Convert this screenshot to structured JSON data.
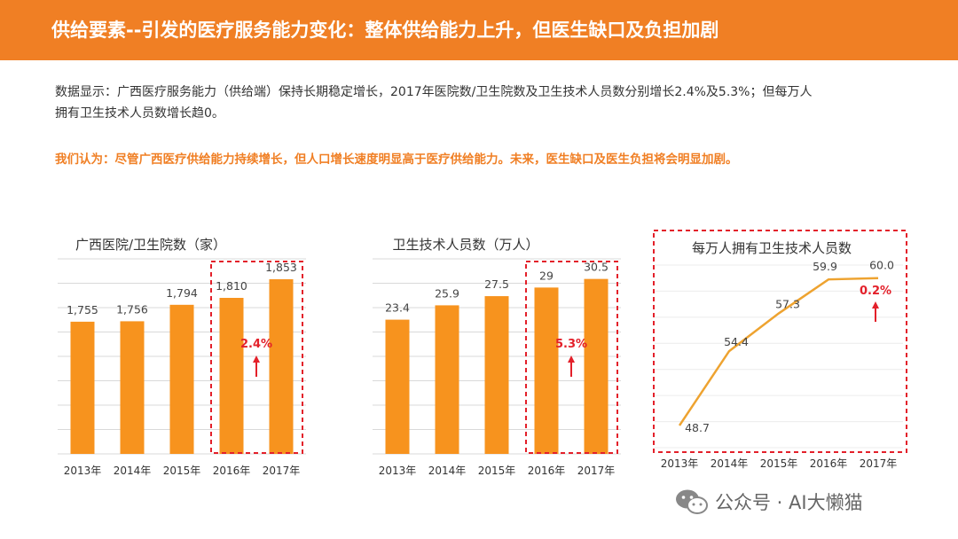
{
  "header": {
    "title": "供给要素--引发的医疗服务能力变化：整体供给能力上升，但医生缺口及负担加剧"
  },
  "description": {
    "line1": "数据显示：广西医疗服务能力（供给端）保持长期稳定增长，2017年医院数/卫生院数及卫生技术人员数分别增长2.4%及5.3%；但每万人",
    "line2": "拥有卫生技术人员数增长趋0。"
  },
  "conclusion": "我们认为：尽管广西医疗供给能力持续增长，但人口增长速度明显高于医疗供给能力。未来，医生缺口及医生负担将会明显加剧。",
  "watermark": {
    "text": "公众号 · AI大懒猫",
    "icon": "wechat-icon"
  },
  "colors": {
    "accent": "#f07f24",
    "bar": "#f7931e",
    "highlight": "#e3202a",
    "grid": "#d9d9d9"
  },
  "chart_data": [
    {
      "type": "bar",
      "title": "广西医院/卫生院数（家）",
      "categories": [
        "2013年",
        "2014年",
        "2015年",
        "2016年",
        "2017年"
      ],
      "values": [
        1755,
        1756,
        1794,
        1810,
        1853
      ],
      "labels": [
        "1,755",
        "1,756",
        "1,794",
        "1,810",
        "1,853"
      ],
      "ylim": [
        1450,
        1900
      ],
      "grid": true,
      "highlight_categories": [
        "2016年",
        "2017年"
      ],
      "growth_label": "2.4%"
    },
    {
      "type": "bar",
      "title": "卫生技术人员数（万人）",
      "categories": [
        "2013年",
        "2014年",
        "2015年",
        "2016年",
        "2017年"
      ],
      "values": [
        23.4,
        25.9,
        27.5,
        29,
        30.5
      ],
      "labels": [
        "23.4",
        "25.9",
        "27.5",
        "29",
        "30.5"
      ],
      "ylim": [
        0,
        34
      ],
      "grid": true,
      "highlight_categories": [
        "2016年",
        "2017年"
      ],
      "growth_label": "5.3%"
    },
    {
      "type": "line",
      "title": "每万人拥有卫生技术人员数",
      "categories": [
        "2013年",
        "2014年",
        "2015年",
        "2016年",
        "2017年"
      ],
      "values": [
        48.7,
        54.4,
        57.3,
        59.9,
        60.0
      ],
      "labels": [
        "48.7",
        "54.4",
        "57.3",
        "59.9",
        "60.0"
      ],
      "ylim": [
        47,
        61
      ],
      "grid": true,
      "growth_label": "0.2%"
    }
  ]
}
